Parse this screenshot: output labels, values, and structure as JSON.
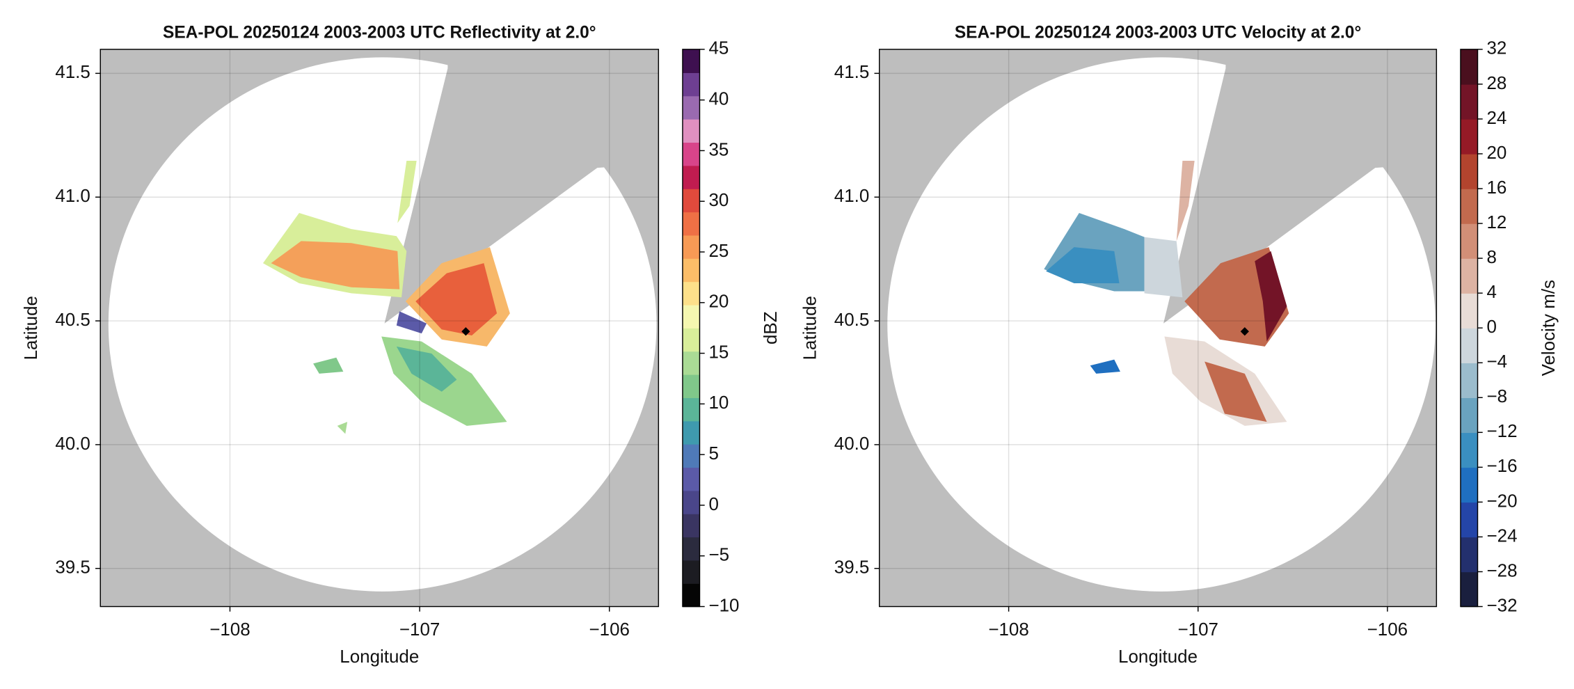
{
  "chart_data": [
    {
      "type": "radar-ppi",
      "title": "SEA-POL 20250124 2003-2003 UTC Reflectivity at 2.0°",
      "xlabel": "Longitude",
      "ylabel": "Latitude",
      "xlim": [
        -108.683,
        -105.741
      ],
      "ylim": [
        39.346,
        41.597
      ],
      "xticks": [
        {
          "value": -108,
          "label": "−108"
        },
        {
          "value": -107,
          "label": "−107"
        },
        {
          "value": -106,
          "label": "−106"
        }
      ],
      "yticks": [
        39.5,
        {
          "value": 40,
          "label": "40.0"
        },
        40.5,
        {
          "value": 41,
          "label": "41.0"
        },
        41.5
      ],
      "grid": true,
      "colorbar": {
        "label": "dBZ",
        "lim": [
          -10,
          45
        ],
        "ticks": [
          {
            "value": -10,
            "label": "−10"
          },
          {
            "value": -5,
            "label": "−5"
          },
          0,
          5,
          10,
          15,
          20,
          25,
          30,
          35,
          40,
          45
        ],
        "colors": [
          "#050505",
          "#1c1c22",
          "#2b2b3e",
          "#3a3562",
          "#4a468a",
          "#5b5aa8",
          "#4f7ab8",
          "#3f9aae",
          "#5bb598",
          "#80c88a",
          "#aadb95",
          "#d8ee9a",
          "#f5f7b0",
          "#fde08a",
          "#fbbd68",
          "#f79a55",
          "#ef7045",
          "#e04a3c",
          "#c01c50",
          "#d8448a",
          "#e090c0",
          "#9a6ab0",
          "#6e3f92",
          "#3e1050"
        ]
      }
    },
    {
      "type": "radar-ppi",
      "title": "SEA-POL 20250124 2003-2003 UTC Velocity at 2.0°",
      "xlabel": "Longitude",
      "ylabel": "Latitude",
      "xlim": [
        -108.683,
        -105.741
      ],
      "ylim": [
        39.346,
        41.597
      ],
      "xticks": [
        {
          "value": -108,
          "label": "−108"
        },
        {
          "value": -107,
          "label": "−107"
        },
        {
          "value": -106,
          "label": "−106"
        }
      ],
      "yticks": [
        39.5,
        {
          "value": 40,
          "label": "40.0"
        },
        40.5,
        {
          "value": 41,
          "label": "41.0"
        },
        41.5
      ],
      "grid": true,
      "colorbar": {
        "label": "Velocity m/s",
        "lim": [
          -32,
          32
        ],
        "ticks": [
          {
            "value": -32,
            "label": "−32"
          },
          {
            "value": -28,
            "label": "−28"
          },
          {
            "value": -24,
            "label": "−24"
          },
          {
            "value": -20,
            "label": "−20"
          },
          {
            "value": -16,
            "label": "−16"
          },
          {
            "value": -12,
            "label": "−12"
          },
          {
            "value": -8,
            "label": "−8"
          },
          {
            "value": -4,
            "label": "−4"
          },
          0,
          4,
          8,
          12,
          16,
          20,
          24,
          28,
          32
        ],
        "colors": [
          "#1a1f3e",
          "#23306e",
          "#2445a8",
          "#1f6fc0",
          "#3a8fc0",
          "#6aa3bf",
          "#9bbccc",
          "#cdd6dc",
          "#e8dcd6",
          "#ddb3a3",
          "#d28f77",
          "#c26a4e",
          "#b3442e",
          "#951a26",
          "#731427",
          "#4a0f1e"
        ]
      }
    }
  ]
}
